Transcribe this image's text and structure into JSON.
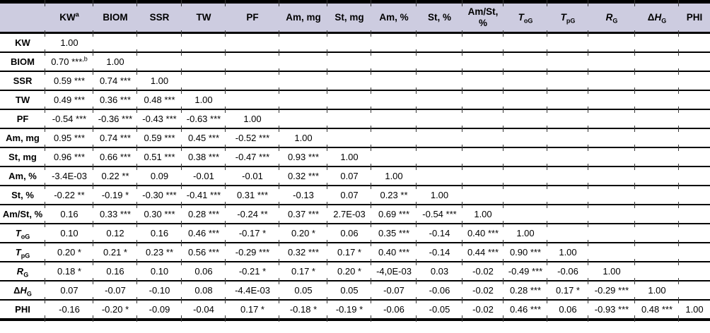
{
  "colors": {
    "header_bg": "#cdcce0",
    "border": "#000000",
    "tick": "#3a3a3a",
    "text": "#000000"
  },
  "table": {
    "corner_label": "",
    "columns": [
      {
        "name": "KW",
        "segments": [
          {
            "t": "KW"
          },
          {
            "t": "a",
            "style": "sup"
          }
        ]
      },
      {
        "name": "BIOM",
        "segments": [
          {
            "t": "BIOM"
          }
        ]
      },
      {
        "name": "SSR",
        "segments": [
          {
            "t": "SSR"
          }
        ]
      },
      {
        "name": "TW",
        "segments": [
          {
            "t": "TW"
          }
        ]
      },
      {
        "name": "PF",
        "segments": [
          {
            "t": "PF"
          }
        ]
      },
      {
        "name": "Am-mg",
        "segments": [
          {
            "t": "Am, mg"
          }
        ]
      },
      {
        "name": "St-mg",
        "segments": [
          {
            "t": "St, mg"
          }
        ]
      },
      {
        "name": "Am-pct",
        "segments": [
          {
            "t": "Am, %"
          }
        ]
      },
      {
        "name": "St-pct",
        "segments": [
          {
            "t": "St, %"
          }
        ]
      },
      {
        "name": "AmSt-pct",
        "segments": [
          {
            "t": "Am/St, %"
          }
        ]
      },
      {
        "name": "ToG",
        "segments": [
          {
            "t": "T",
            "style": "i"
          },
          {
            "t": "oG",
            "style": "sub"
          }
        ]
      },
      {
        "name": "TpG",
        "segments": [
          {
            "t": "T",
            "style": "i"
          },
          {
            "t": "pG",
            "style": "sub"
          }
        ]
      },
      {
        "name": "RG",
        "segments": [
          {
            "t": "R",
            "style": "i"
          },
          {
            "t": "G",
            "style": "sub"
          }
        ]
      },
      {
        "name": "dHG",
        "segments": [
          {
            "t": "Δ"
          },
          {
            "t": "H",
            "style": "i"
          },
          {
            "t": "G",
            "style": "sub"
          }
        ]
      },
      {
        "name": "PHI",
        "segments": [
          {
            "t": "PHI"
          }
        ]
      }
    ],
    "rows": [
      {
        "label": {
          "name": "KW",
          "segments": [
            {
              "t": "KW"
            }
          ]
        },
        "cells": [
          "1.00",
          "",
          "",
          "",
          "",
          "",
          "",
          "",
          "",
          "",
          "",
          "",
          "",
          "",
          ""
        ]
      },
      {
        "label": {
          "name": "BIOM",
          "segments": [
            {
              "t": "BIOM"
            }
          ]
        },
        "cells": [
          [
            {
              "t": "0.70 ***"
            },
            {
              "t": ",b",
              "style": "sup"
            }
          ],
          "1.00",
          "",
          "",
          "",
          "",
          "",
          "",
          "",
          "",
          "",
          "",
          "",
          "",
          ""
        ]
      },
      {
        "label": {
          "name": "SSR",
          "segments": [
            {
              "t": "SSR"
            }
          ]
        },
        "cells": [
          "0.59 ***",
          "0.74 ***",
          "1.00",
          "",
          "",
          "",
          "",
          "",
          "",
          "",
          "",
          "",
          "",
          "",
          ""
        ]
      },
      {
        "label": {
          "name": "TW",
          "segments": [
            {
              "t": "TW"
            }
          ]
        },
        "cells": [
          "0.49 ***",
          "0.36 ***",
          "0.48 ***",
          "1.00",
          "",
          "",
          "",
          "",
          "",
          "",
          "",
          "",
          "",
          "",
          ""
        ]
      },
      {
        "label": {
          "name": "PF",
          "segments": [
            {
              "t": "PF"
            }
          ]
        },
        "cells": [
          "-0.54 ***",
          "-0.36 ***",
          "-0.43 ***",
          "-0.63 ***",
          "1.00",
          "",
          "",
          "",
          "",
          "",
          "",
          "",
          "",
          "",
          ""
        ]
      },
      {
        "label": {
          "name": "Am-mg",
          "segments": [
            {
              "t": "Am, mg"
            }
          ]
        },
        "cells": [
          "0.95 ***",
          "0.74 ***",
          "0.59 ***",
          "0.45 ***",
          "-0.52 ***",
          "1.00",
          "",
          "",
          "",
          "",
          "",
          "",
          "",
          "",
          ""
        ]
      },
      {
        "label": {
          "name": "St-mg",
          "segments": [
            {
              "t": "St, mg"
            }
          ]
        },
        "cells": [
          "0.96 ***",
          "0.66 ***",
          "0.51 ***",
          "0.38 ***",
          "-0.47 ***",
          "0.93 ***",
          "1.00",
          "",
          "",
          "",
          "",
          "",
          "",
          "",
          ""
        ]
      },
      {
        "label": {
          "name": "Am-pct",
          "segments": [
            {
              "t": "Am, %"
            }
          ]
        },
        "cells": [
          "-3.4E-03",
          "0.22 **",
          "0.09",
          "-0.01",
          "-0.01",
          "0.32 ***",
          "0.07",
          "1.00",
          "",
          "",
          "",
          "",
          "",
          "",
          ""
        ]
      },
      {
        "label": {
          "name": "St-pct",
          "segments": [
            {
              "t": "St, %"
            }
          ]
        },
        "cells": [
          "-0.22 **",
          "-0.19 *",
          "-0.30 ***",
          "-0.41 ***",
          "0.31 ***",
          "-0.13",
          "0.07",
          "0.23 **",
          "1.00",
          "",
          "",
          "",
          "",
          "",
          ""
        ]
      },
      {
        "label": {
          "name": "AmSt-pct",
          "segments": [
            {
              "t": "Am/St, %"
            }
          ]
        },
        "cells": [
          "0.16",
          "0.33 ***",
          "0.30 ***",
          "0.28 ***",
          "-0.24 **",
          "0.37 ***",
          "2.7E-03",
          "0.69 ***",
          "-0.54 ***",
          "1.00",
          "",
          "",
          "",
          "",
          ""
        ]
      },
      {
        "label": {
          "name": "ToG",
          "segments": [
            {
              "t": "T",
              "style": "i"
            },
            {
              "t": "oG",
              "style": "sub"
            }
          ]
        },
        "cells": [
          "0.10",
          "0.12",
          "0.16",
          "0.46 ***",
          "-0.17 *",
          "0.20 *",
          "0.06",
          "0.35 ***",
          "-0.14",
          "0.40 ***",
          "1.00",
          "",
          "",
          "",
          ""
        ]
      },
      {
        "label": {
          "name": "TpG",
          "segments": [
            {
              "t": "T",
              "style": "i"
            },
            {
              "t": "pG",
              "style": "sub"
            }
          ]
        },
        "cells": [
          "0.20 *",
          "0.21 *",
          "0.23 **",
          "0.56 ***",
          "-0.29 ***",
          "0.32 ***",
          "0.17 *",
          "0.40 ***",
          "-0.14",
          "0.44 ***",
          "0.90 ***",
          "1.00",
          "",
          "",
          ""
        ]
      },
      {
        "label": {
          "name": "RG",
          "segments": [
            {
              "t": "R",
              "style": "i"
            },
            {
              "t": "G",
              "style": "sub"
            }
          ]
        },
        "cells": [
          "0.18 *",
          "0.16",
          "0.10",
          "0.06",
          "-0.21 *",
          "0.17 *",
          "0.20 *",
          "-4,0E-03",
          "0.03",
          "-0.02",
          "-0.49 ***",
          "-0.06",
          "1.00",
          "",
          ""
        ]
      },
      {
        "label": {
          "name": "dHG",
          "segments": [
            {
              "t": "Δ"
            },
            {
              "t": "H",
              "style": "i"
            },
            {
              "t": "G",
              "style": "sub"
            }
          ]
        },
        "cells": [
          "0.07",
          "-0.07",
          "-0.10",
          "0.08",
          "-4.4E-03",
          "0.05",
          "0.05",
          "-0.07",
          "-0.06",
          "-0.02",
          "0.28 ***",
          "0.17 *",
          "-0.29 ***",
          "1.00",
          ""
        ]
      },
      {
        "label": {
          "name": "PHI",
          "segments": [
            {
              "t": "PHI"
            }
          ]
        },
        "cells": [
          "-0.16",
          "-0.20 *",
          "-0.09",
          "-0.04",
          "0.17 *",
          "-0.18 *",
          "-0.19 *",
          "-0.06",
          "-0.05",
          "-0.02",
          "0.46 ***",
          "0.06",
          "-0.93 ***",
          "0.48 ***",
          "1.00"
        ]
      }
    ]
  }
}
